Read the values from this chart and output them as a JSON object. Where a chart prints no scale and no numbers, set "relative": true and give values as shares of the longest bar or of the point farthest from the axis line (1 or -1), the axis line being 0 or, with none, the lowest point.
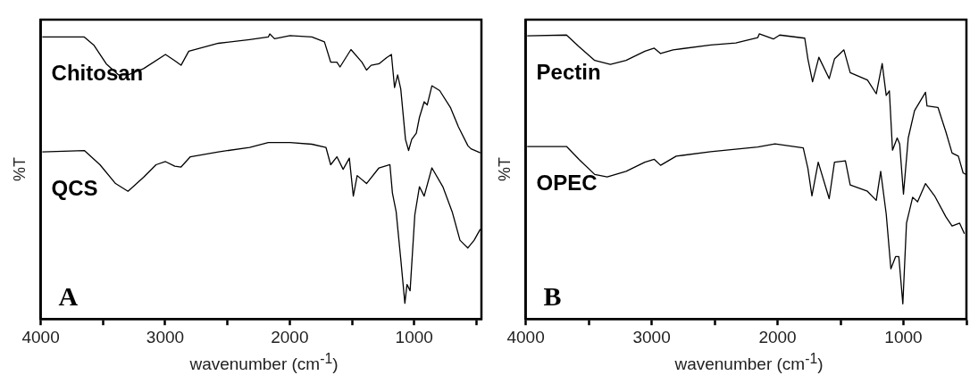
{
  "chart_data": [
    {
      "type": "line",
      "relative": true,
      "xlabel": "wavenumber (cm$^{-1}$)",
      "ylabel": "%T",
      "annotations": [
        "A"
      ],
      "grid": false,
      "legend": false,
      "marker": "none",
      "line_style": "solid",
      "xlim": [
        4000,
        460
      ],
      "xticks": [
        4000,
        {
          "value": 3500,
          "label": null
        },
        3000,
        {
          "value": 2500,
          "label": null
        },
        2000,
        {
          "value": 1500,
          "label": null
        },
        1000,
        {
          "value": 500,
          "label": null
        }
      ],
      "series": [
        {
          "name": "Chitosan",
          "color": "#000000",
          "x": [
            3987,
            3650,
            3574,
            3474,
            3374,
            3299,
            3174,
            2998,
            2923,
            2873,
            2811,
            2573,
            2322,
            2172,
            2160,
            2122,
            1997,
            1822,
            1721,
            1671,
            1621,
            1596,
            1508,
            1420,
            1383,
            1346,
            1283,
            1221,
            1183,
            1158,
            1133,
            1108,
            1070,
            1045,
            1020,
            983,
            958,
            920,
            895,
            858,
            795,
            707,
            645,
            569,
            544,
            469
          ],
          "values": [
            0.989,
            0.989,
            0.961,
            0.895,
            0.856,
            0.856,
            0.878,
            0.928,
            0.906,
            0.89,
            0.939,
            0.967,
            0.98,
            0.989,
            1.0,
            0.983,
            0.994,
            0.989,
            0.972,
            0.901,
            0.901,
            0.884,
            0.945,
            0.901,
            0.873,
            0.89,
            0.895,
            0.917,
            0.928,
            0.812,
            0.856,
            0.807,
            0.63,
            0.591,
            0.63,
            0.652,
            0.707,
            0.762,
            0.751,
            0.818,
            0.801,
            0.74,
            0.674,
            0.608,
            0.597,
            0.583
          ]
        },
        {
          "name": "QCS",
          "color": "#000000",
          "x": [
            3987,
            3650,
            3524,
            3399,
            3299,
            3174,
            3074,
            2998,
            2923,
            2873,
            2798,
            2573,
            2322,
            2172,
            1997,
            1822,
            1709,
            1671,
            1621,
            1571,
            1521,
            1489,
            1458,
            1383,
            1283,
            1195,
            1175,
            1145,
            1108,
            1075,
            1058,
            1033,
            995,
            958,
            920,
            858,
            770,
            695,
            632,
            569,
            519,
            469
          ],
          "values": [
            0.586,
            0.591,
            0.541,
            0.475,
            0.448,
            0.497,
            0.541,
            0.552,
            0.536,
            0.533,
            0.569,
            0.586,
            0.602,
            0.619,
            0.619,
            0.613,
            0.602,
            0.541,
            0.569,
            0.525,
            0.564,
            0.431,
            0.503,
            0.475,
            0.53,
            0.541,
            0.442,
            0.376,
            0.21,
            0.055,
            0.121,
            0.099,
            0.365,
            0.464,
            0.431,
            0.53,
            0.464,
            0.376,
            0.276,
            0.249,
            0.276,
            0.315
          ]
        }
      ]
    },
    {
      "type": "line",
      "relative": true,
      "xlabel": "wavenumber (cm$^{-1}$)",
      "ylabel": "%T",
      "annotations": [
        "B"
      ],
      "grid": false,
      "legend": false,
      "marker": "none",
      "line_style": "solid",
      "xlim": [
        4000,
        500
      ],
      "xticks": [
        4000,
        {
          "value": 3500,
          "label": null
        },
        3000,
        {
          "value": 2500,
          "label": null
        },
        2000,
        {
          "value": 1500,
          "label": null
        },
        1000,
        {
          "value": 500,
          "label": null
        }
      ],
      "series": [
        {
          "name": "Pectin",
          "color": "#000000",
          "x": [
            3988,
            3676,
            3577,
            3452,
            3328,
            3203,
            3054,
            2979,
            2929,
            2830,
            2531,
            2332,
            2157,
            2145,
            2033,
            1983,
            1784,
            1759,
            1722,
            1672,
            1590,
            1548,
            1473,
            1423,
            1286,
            1216,
            1169,
            1137,
            1112,
            1087,
            1050,
            1030,
            1000,
            962,
            912,
            825,
            813,
            726,
            663,
            614,
            564,
            526,
            501
          ],
          "values": [
            0.993,
            0.996,
            0.955,
            0.907,
            0.893,
            0.907,
            0.939,
            0.95,
            0.931,
            0.944,
            0.961,
            0.968,
            0.987,
            1.0,
            0.982,
            0.996,
            0.985,
            0.912,
            0.832,
            0.918,
            0.843,
            0.912,
            0.944,
            0.864,
            0.838,
            0.79,
            0.896,
            0.784,
            0.8,
            0.592,
            0.635,
            0.614,
            0.438,
            0.635,
            0.731,
            0.795,
            0.747,
            0.742,
            0.656,
            0.582,
            0.571,
            0.512,
            0.507
          ]
        },
        {
          "name": "OPEC",
          "color": "#000000",
          "x": [
            3988,
            3676,
            3577,
            3452,
            3353,
            3203,
            3054,
            2979,
            2929,
            2805,
            2531,
            2157,
            2020,
            1796,
            1759,
            1727,
            1677,
            1590,
            1548,
            1461,
            1423,
            1286,
            1216,
            1181,
            1137,
            1100,
            1062,
            1037,
            1005,
            976,
            927,
            888,
            825,
            753,
            663,
            614,
            554,
            516
          ],
          "values": [
            0.605,
            0.605,
            0.56,
            0.507,
            0.498,
            0.518,
            0.55,
            0.56,
            0.539,
            0.571,
            0.587,
            0.603,
            0.614,
            0.6,
            0.528,
            0.432,
            0.55,
            0.422,
            0.55,
            0.555,
            0.47,
            0.448,
            0.416,
            0.518,
            0.368,
            0.176,
            0.219,
            0.219,
            0.053,
            0.336,
            0.427,
            0.411,
            0.475,
            0.432,
            0.358,
            0.326,
            0.336,
            0.299
          ]
        }
      ]
    }
  ]
}
